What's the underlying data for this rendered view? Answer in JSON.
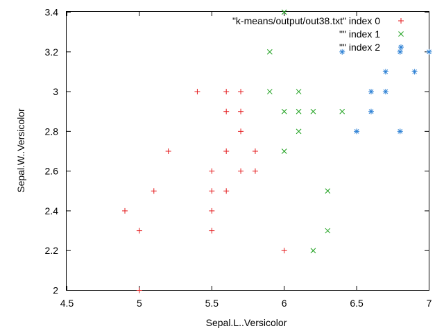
{
  "chart_data": {
    "type": "scatter",
    "title": "",
    "xlabel": "Sepal.L..Versicolor",
    "ylabel": "Sepal.W..Versicolor",
    "xlim": [
      4.5,
      7
    ],
    "ylim": [
      2,
      3.4
    ],
    "x_ticks": [
      "4.5",
      "5",
      "5.5",
      "6",
      "6.5",
      "7"
    ],
    "y_ticks": [
      "2",
      "2.2",
      "2.4",
      "2.6",
      "2.8",
      "3",
      "3.2",
      "3.4"
    ],
    "grid": false,
    "legend_position": "top-right",
    "series": [
      {
        "name": "\"k-means/output/out38.txt\" index 0",
        "color": "#e41a1c",
        "marker": "plus",
        "points": [
          [
            4.9,
            2.4
          ],
          [
            5.0,
            2.3
          ],
          [
            5.0,
            2.0
          ],
          [
            5.1,
            2.5
          ],
          [
            5.2,
            2.7
          ],
          [
            5.4,
            3.0
          ],
          [
            5.5,
            2.3
          ],
          [
            5.5,
            2.4
          ],
          [
            5.5,
            2.5
          ],
          [
            5.5,
            2.6
          ],
          [
            5.6,
            2.5
          ],
          [
            5.6,
            2.7
          ],
          [
            5.6,
            2.9
          ],
          [
            5.6,
            3.0
          ],
          [
            5.7,
            2.6
          ],
          [
            5.7,
            2.8
          ],
          [
            5.7,
            2.9
          ],
          [
            5.7,
            3.0
          ],
          [
            5.8,
            2.6
          ],
          [
            5.8,
            2.7
          ],
          [
            6.0,
            2.2
          ]
        ]
      },
      {
        "name": "\"\" index 1",
        "color": "#1ca01c",
        "marker": "cross",
        "points": [
          [
            5.9,
            3.0
          ],
          [
            5.9,
            3.2
          ],
          [
            6.0,
            2.7
          ],
          [
            6.0,
            2.9
          ],
          [
            6.0,
            3.4
          ],
          [
            6.1,
            2.8
          ],
          [
            6.1,
            2.9
          ],
          [
            6.1,
            3.0
          ],
          [
            6.2,
            2.2
          ],
          [
            6.2,
            2.9
          ],
          [
            6.3,
            2.3
          ],
          [
            6.3,
            2.5
          ],
          [
            6.4,
            2.9
          ]
        ]
      },
      {
        "name": "\"\" index 2",
        "color": "#2a7fd4",
        "marker": "star",
        "points": [
          [
            6.4,
            3.2
          ],
          [
            6.5,
            2.8
          ],
          [
            6.6,
            2.9
          ],
          [
            6.6,
            3.0
          ],
          [
            6.7,
            3.0
          ],
          [
            6.7,
            3.1
          ],
          [
            6.8,
            2.8
          ],
          [
            6.8,
            3.2
          ],
          [
            6.9,
            3.1
          ],
          [
            7.0,
            3.2
          ]
        ]
      }
    ]
  }
}
